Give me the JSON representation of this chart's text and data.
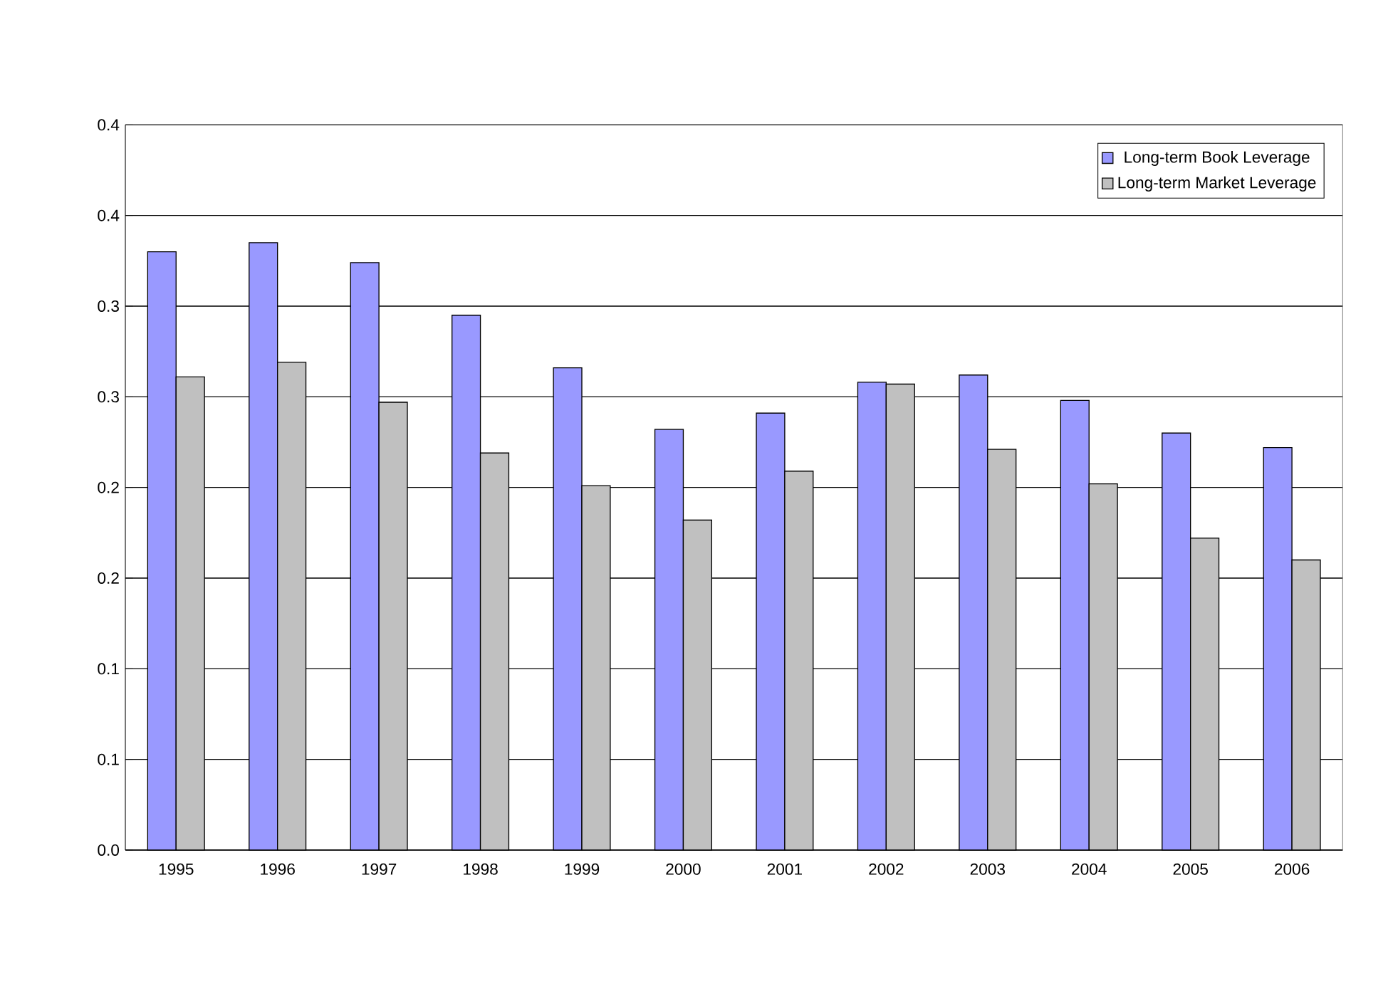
{
  "chart_data": {
    "type": "bar",
    "categories": [
      "1995",
      "1996",
      "1997",
      "1998",
      "1999",
      "2000",
      "2001",
      "2002",
      "2003",
      "2004",
      "2005",
      "2006"
    ],
    "series": [
      {
        "name": "Long-term Book Leverage",
        "color": "#9999ff",
        "values": [
          0.33,
          0.335,
          0.324,
          0.295,
          0.266,
          0.232,
          0.241,
          0.258,
          0.262,
          0.248,
          0.23,
          0.222
        ]
      },
      {
        "name": "Long-term Market Leverage",
        "color": "#c0c0c0",
        "values": [
          0.261,
          0.269,
          0.247,
          0.219,
          0.201,
          0.182,
          0.209,
          0.257,
          0.221,
          0.202,
          0.172,
          0.16
        ]
      }
    ],
    "ylim": [
      0,
      0.4
    ],
    "yticks": [
      {
        "value": 0,
        "label": "0.0"
      },
      {
        "value": 0.05,
        "label": "0.1"
      },
      {
        "value": 0.1,
        "label": "0.1"
      },
      {
        "value": 0.15,
        "label": "0.2"
      },
      {
        "value": 0.2,
        "label": "0.2"
      },
      {
        "value": 0.25,
        "label": "0.3"
      },
      {
        "value": 0.3,
        "label": "0.3"
      },
      {
        "value": 0.35,
        "label": "0.4"
      },
      {
        "value": 0.4,
        "label": "0.4"
      }
    ],
    "grid": "y",
    "legend": "top right"
  }
}
